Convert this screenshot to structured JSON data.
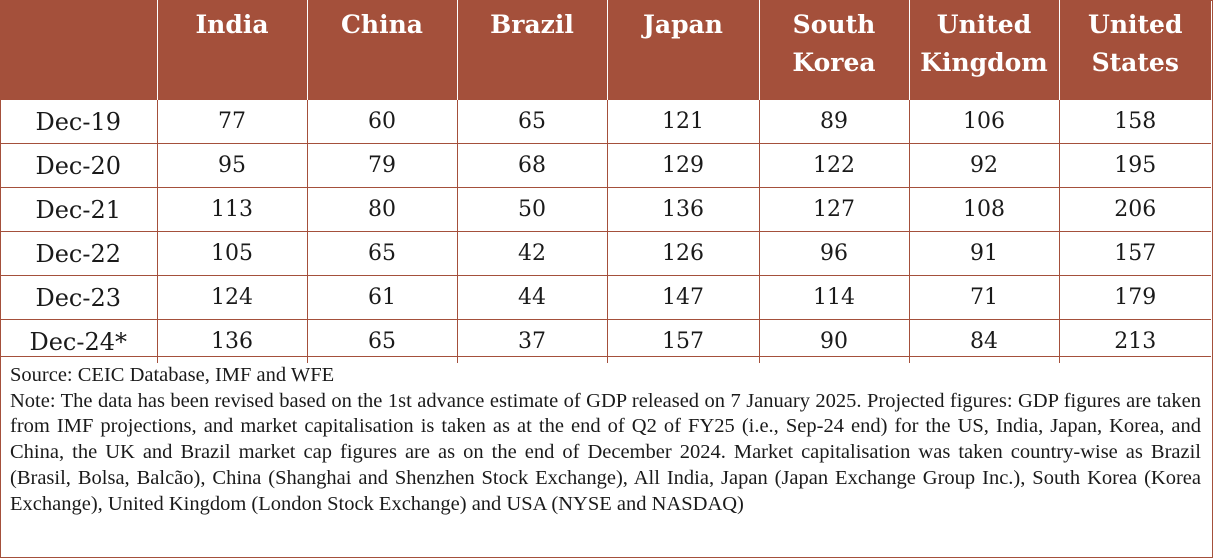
{
  "chart_data": {
    "type": "table",
    "columns": [
      "India",
      "China",
      "Brazil",
      "Japan",
      "South Korea",
      "United Kingdom",
      "United States"
    ],
    "header_lines": [
      [
        "India"
      ],
      [
        "China"
      ],
      [
        "Brazil"
      ],
      [
        "Japan"
      ],
      [
        "South",
        "Korea"
      ],
      [
        "United",
        "Kingdom"
      ],
      [
        "United",
        "States"
      ]
    ],
    "rows": [
      {
        "label": "Dec-19",
        "values": [
          "77",
          "60",
          "65",
          "121",
          "89",
          "106",
          "158"
        ]
      },
      {
        "label": "Dec-20",
        "values": [
          "95",
          "79",
          "68",
          "129",
          "122",
          "92",
          "195"
        ]
      },
      {
        "label": "Dec-21",
        "values": [
          "113",
          "80",
          "50",
          "136",
          "127",
          "108",
          "206"
        ]
      },
      {
        "label": "Dec-22",
        "values": [
          "105",
          "65",
          "42",
          "126",
          "96",
          "91",
          "157"
        ]
      },
      {
        "label": "Dec-23",
        "values": [
          "124",
          "61",
          "44",
          "147",
          "114",
          "71",
          "179"
        ]
      },
      {
        "label": "Dec-24*",
        "values": [
          "136",
          "65",
          "37",
          "157",
          "90",
          "84",
          "213"
        ]
      }
    ]
  },
  "notes": {
    "source": "Source: CEIC Database, IMF and WFE",
    "note": "Note: The data has been revised based on the 1st advance estimate of GDP released on 7 January 2025. Projected figures: GDP figures are taken from IMF projections, and market capitalisation is taken as at the end of Q2 of FY25 (i.e., Sep-24 end) for the US, India, Japan, Korea, and China, the UK and Brazil market cap figures are as on the end of December 2024. Market capitalisation was taken country-wise as Brazil (Brasil, Bolsa, Balcão), China (Shanghai and Shenzhen Stock Exchange), All India, Japan (Japan Exchange Group Inc.), South Korea (Korea Exchange), United Kingdom (London Stock Exchange) and USA (NYSE and NASDAQ)"
  },
  "colors": {
    "header_bg": "#a4503b",
    "header_text": "#ffffff",
    "grid": "#a4503b"
  }
}
